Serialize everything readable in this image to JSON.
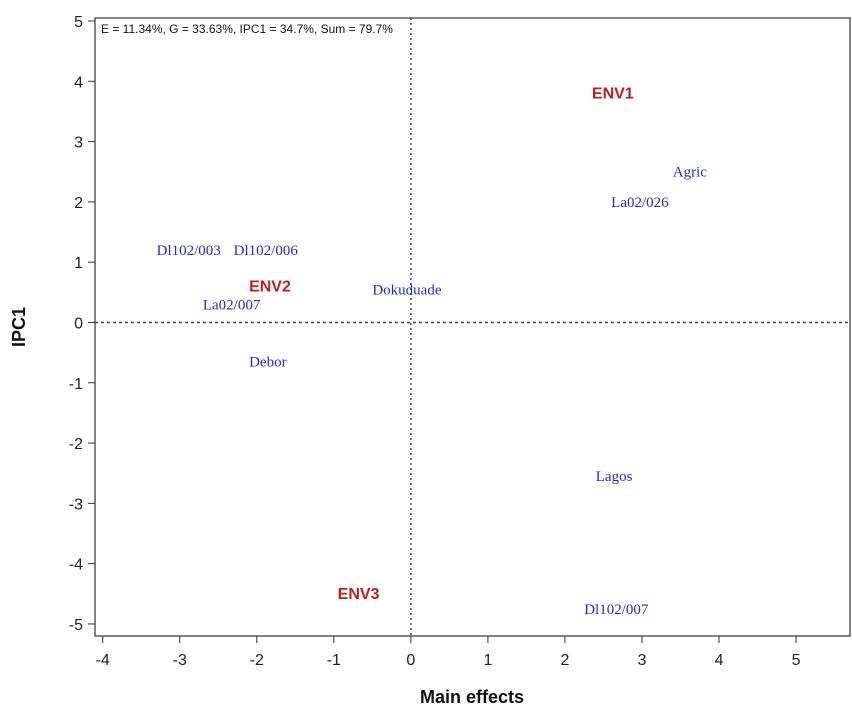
{
  "chart_data": {
    "type": "scatter",
    "header": "E = 11.34%, G = 33.63%, IPC1 = 34.7%, Sum = 79.7%",
    "xlabel": "Main effects",
    "ylabel": "IPC1",
    "xlim": [
      -4.1,
      5.7
    ],
    "ylim": [
      -5.2,
      5.05
    ],
    "x_ticks": [
      -4,
      -3,
      -2,
      -1,
      0,
      1,
      2,
      3,
      4,
      5
    ],
    "y_ticks": [
      5,
      4,
      3,
      2,
      1,
      0,
      -1,
      -2,
      -3,
      -4,
      -5
    ],
    "reference_lines": {
      "x": 0,
      "y": 0,
      "style": "dotted"
    },
    "grid": false,
    "colors": {
      "genotype": "#2a2ab8",
      "environment": "#b22222",
      "axis": "#333333"
    },
    "series": [
      {
        "name": "",
        "group": "genotype",
        "points": [
          {
            "label": "Agric",
            "x": 3.4,
            "y": 2.5
          },
          {
            "label": "La02/026",
            "x": 2.6,
            "y": 2.0
          },
          {
            "label": "Dl102/003",
            "x": -3.3,
            "y": 1.2
          },
          {
            "label": "Dl102/006",
            "x": -2.3,
            "y": 1.2
          },
          {
            "label": "Dokuduade",
            "x": -0.5,
            "y": 0.55
          },
          {
            "label": "La02/007",
            "x": -2.7,
            "y": 0.3
          },
          {
            "label": "Debor",
            "x": -2.1,
            "y": -0.65
          },
          {
            "label": "Lagos",
            "x": 2.4,
            "y": -2.55
          },
          {
            "label": "Dl102/007",
            "x": 2.25,
            "y": -4.75
          }
        ]
      },
      {
        "name": "",
        "group": "environment",
        "points": [
          {
            "label": "ENV1",
            "x": 2.35,
            "y": 3.8
          },
          {
            "label": "ENV2",
            "x": -2.1,
            "y": 0.6
          },
          {
            "label": "ENV3",
            "x": -0.95,
            "y": -4.5
          }
        ]
      }
    ]
  }
}
